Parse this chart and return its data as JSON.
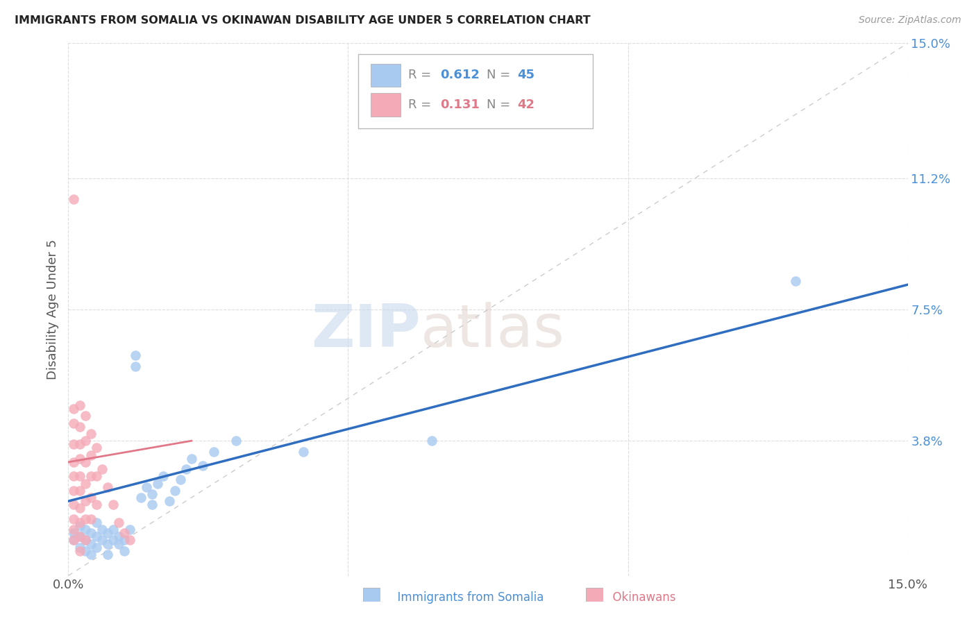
{
  "title": "IMMIGRANTS FROM SOMALIA VS OKINAWAN DISABILITY AGE UNDER 5 CORRELATION CHART",
  "source": "Source: ZipAtlas.com",
  "ylabel": "Disability Age Under 5",
  "xlim": [
    0.0,
    0.15
  ],
  "ylim": [
    0.0,
    0.15
  ],
  "ytick_vals": [
    0.0,
    0.038,
    0.075,
    0.112,
    0.15
  ],
  "ytick_labels": [
    "",
    "3.8%",
    "7.5%",
    "11.2%",
    "15.0%"
  ],
  "xtick_vals": [
    0.0,
    0.05,
    0.1,
    0.15
  ],
  "xtick_labels": [
    "0.0%",
    "",
    "",
    "15.0%"
  ],
  "color_blue": "#a8caf0",
  "color_pink": "#f5aab8",
  "line_blue": "#2e6dbf",
  "line_pink": "#e07888",
  "watermark_zip": "ZIP",
  "watermark_atlas": "atlas",
  "legend_r1_val": "0.612",
  "legend_n1_val": "45",
  "legend_r2_val": "0.131",
  "legend_n2_val": "42",
  "blue_line_x0": 0.0,
  "blue_line_y0": 0.021,
  "blue_line_x1": 0.15,
  "blue_line_y1": 0.082,
  "pink_line_x0": 0.0,
  "pink_line_y0": 0.032,
  "pink_line_x1": 0.022,
  "pink_line_y1": 0.038,
  "somalia_x": [
    0.001,
    0.001,
    0.002,
    0.002,
    0.002,
    0.003,
    0.003,
    0.003,
    0.004,
    0.004,
    0.004,
    0.005,
    0.005,
    0.005,
    0.006,
    0.006,
    0.007,
    0.007,
    0.007,
    0.008,
    0.008,
    0.009,
    0.009,
    0.01,
    0.01,
    0.011,
    0.012,
    0.012,
    0.013,
    0.014,
    0.015,
    0.015,
    0.016,
    0.017,
    0.018,
    0.019,
    0.02,
    0.021,
    0.022,
    0.024,
    0.026,
    0.03,
    0.042,
    0.065,
    0.13
  ],
  "somalia_y": [
    0.01,
    0.012,
    0.008,
    0.011,
    0.014,
    0.007,
    0.01,
    0.013,
    0.006,
    0.009,
    0.012,
    0.008,
    0.011,
    0.015,
    0.01,
    0.013,
    0.006,
    0.009,
    0.012,
    0.01,
    0.013,
    0.009,
    0.011,
    0.007,
    0.01,
    0.013,
    0.059,
    0.062,
    0.022,
    0.025,
    0.02,
    0.023,
    0.026,
    0.028,
    0.021,
    0.024,
    0.027,
    0.03,
    0.033,
    0.031,
    0.035,
    0.038,
    0.035,
    0.038,
    0.083
  ],
  "okinawa_x": [
    0.001,
    0.001,
    0.001,
    0.001,
    0.001,
    0.001,
    0.001,
    0.001,
    0.001,
    0.001,
    0.001,
    0.002,
    0.002,
    0.002,
    0.002,
    0.002,
    0.002,
    0.002,
    0.002,
    0.002,
    0.002,
    0.003,
    0.003,
    0.003,
    0.003,
    0.003,
    0.003,
    0.003,
    0.004,
    0.004,
    0.004,
    0.004,
    0.004,
    0.005,
    0.005,
    0.005,
    0.006,
    0.007,
    0.008,
    0.009,
    0.01,
    0.011
  ],
  "okinawa_y": [
    0.106,
    0.047,
    0.043,
    0.037,
    0.032,
    0.028,
    0.024,
    0.02,
    0.016,
    0.013,
    0.01,
    0.048,
    0.042,
    0.037,
    0.033,
    0.028,
    0.024,
    0.019,
    0.015,
    0.011,
    0.007,
    0.045,
    0.038,
    0.032,
    0.026,
    0.021,
    0.016,
    0.01,
    0.04,
    0.034,
    0.028,
    0.022,
    0.016,
    0.036,
    0.028,
    0.02,
    0.03,
    0.025,
    0.02,
    0.015,
    0.012,
    0.01
  ]
}
